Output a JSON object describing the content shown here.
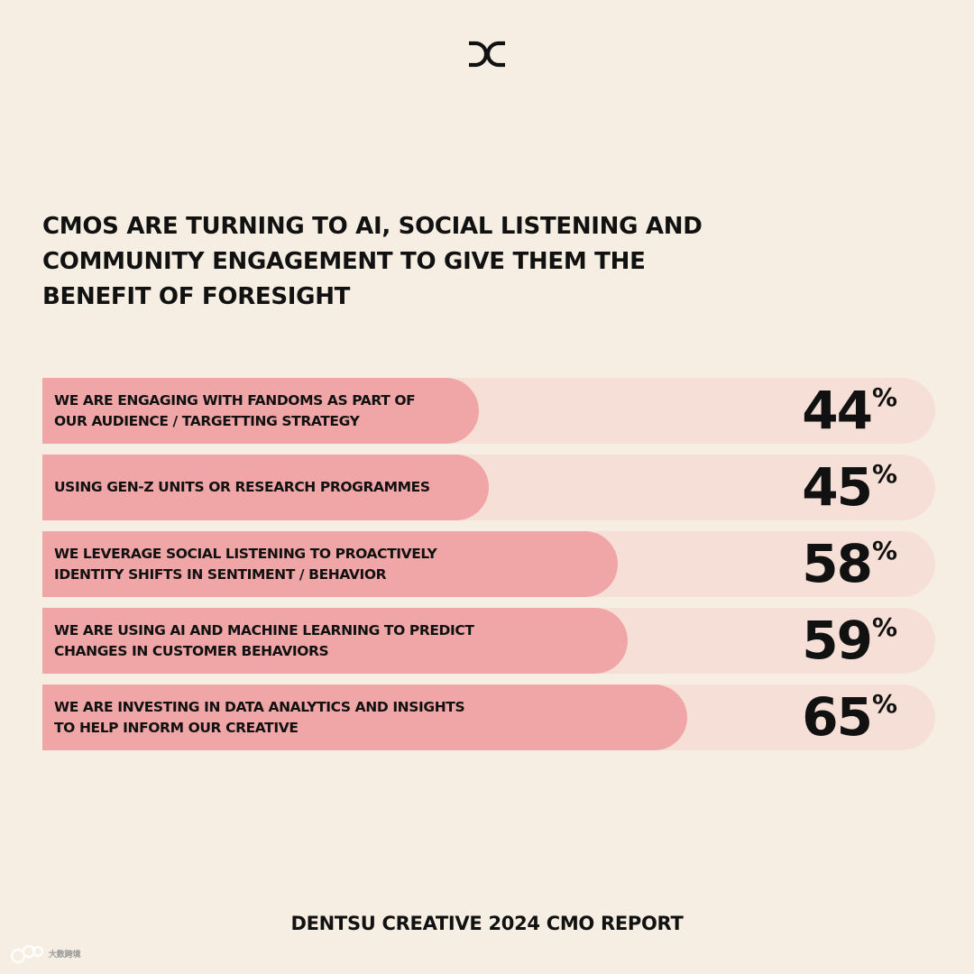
{
  "headline": "CMOS ARE TURNING TO AI, SOCIAL LISTENING AND COMMUNITY ENGAGEMENT TO GIVE THEM THE BENEFIT OF FORESIGHT",
  "footer": "DENTSU CREATIVE 2024 CMO REPORT",
  "watermark_text": "大数跨境",
  "brand_logo": "dc-logo",
  "colors": {
    "background": "#f7eee3",
    "bar_fill": "#f0a6a6",
    "bar_track": "#f6dfd6",
    "text": "#111111"
  },
  "chart_data": {
    "type": "bar",
    "orientation": "horizontal",
    "title": "CMOS ARE TURNING TO AI, SOCIAL LISTENING AND COMMUNITY ENGAGEMENT TO GIVE THEM THE BENEFIT OF FORESIGHT",
    "unit": "%",
    "categories": [
      "WE ARE ENGAGING WITH FANDOMS AS PART OF\nOUR AUDIENCE / TARGETTING STRATEGY",
      "USING GEN-Z UNITS OR RESEARCH PROGRAMMES",
      "WE LEVERAGE SOCIAL LISTENING TO PROACTIVELY\nIDENTITY SHIFTS IN SENTIMENT / BEHAVIOR",
      "WE ARE USING AI AND MACHINE LEARNING TO PREDICT\nCHANGES IN CUSTOMER BEHAVIORS",
      "WE ARE INVESTING IN DATA ANALYTICS AND INSIGHTS\nTO HELP INFORM OUR CREATIVE"
    ],
    "values": [
      44,
      45,
      58,
      59,
      65
    ],
    "xlim": [
      0,
      90
    ],
    "grid": false,
    "legend": "none"
  }
}
